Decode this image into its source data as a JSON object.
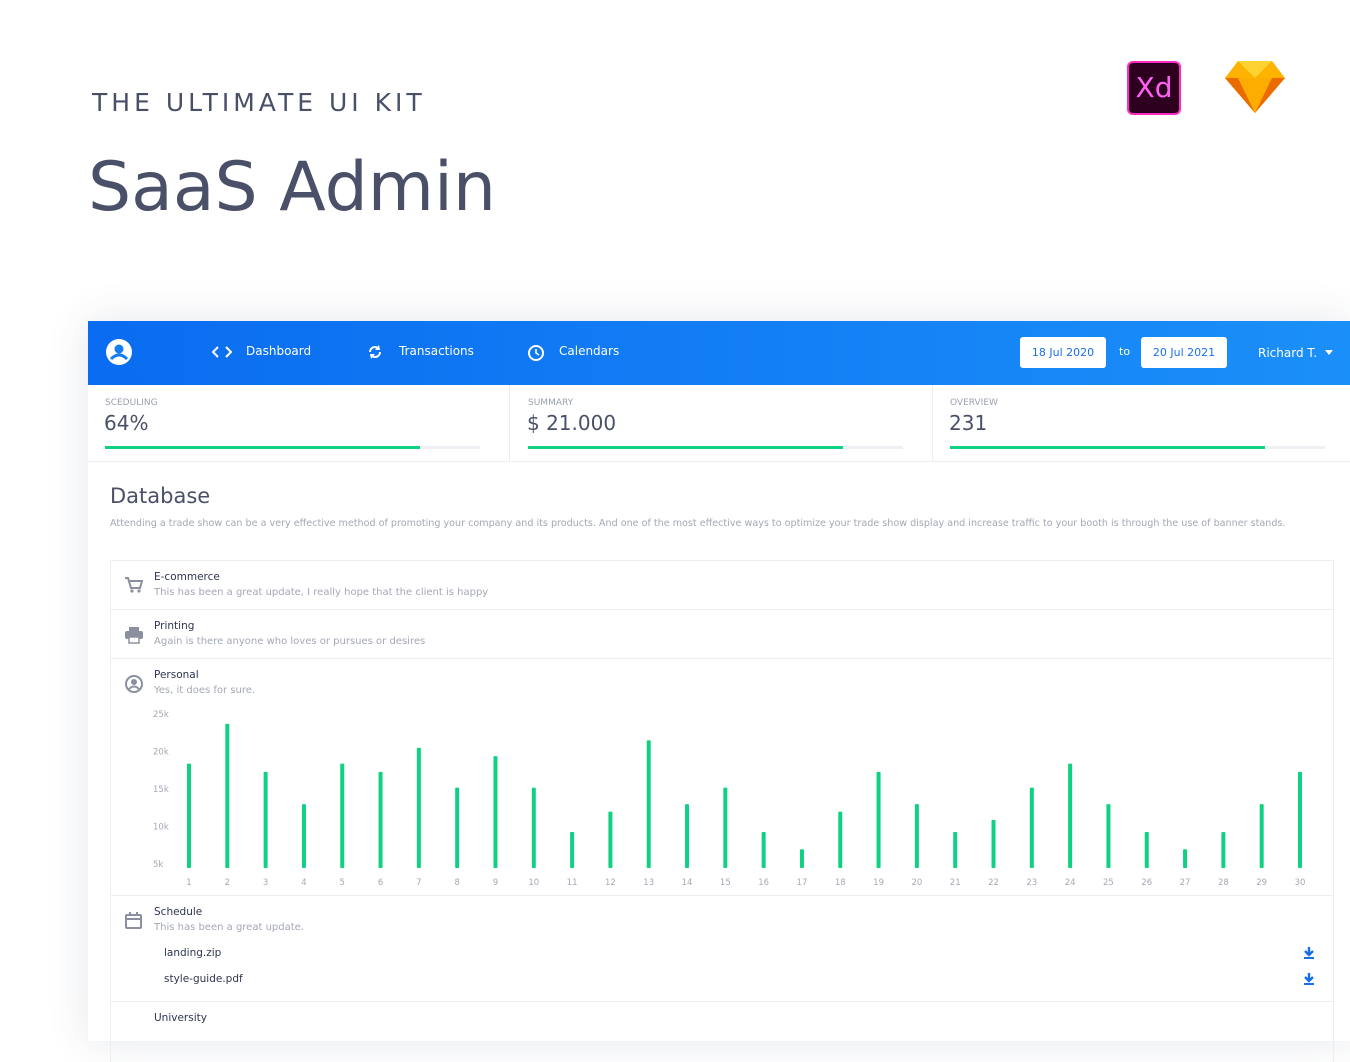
{
  "header": {
    "eyebrow": "THE ULTIMATE UI KIT",
    "title": "SaaS Admin",
    "xd_logo": "Xd"
  },
  "nav": {
    "items": [
      "Dashboard",
      "Transactions",
      "Calendars"
    ],
    "date_from": "18 Jul 2020",
    "date_sep": "to",
    "date_to": "20 Jul 2021",
    "user": "Richard T."
  },
  "stats": [
    {
      "label": "SCEDULING",
      "value": "64%",
      "progress": 84
    },
    {
      "label": "SUMMARY",
      "value": "$ 21.000",
      "progress": 84
    },
    {
      "label": "OVERVIEW",
      "value": "231",
      "progress": 84
    }
  ],
  "database": {
    "title": "Database",
    "description": "Attending a trade show can be a very effective method of promoting your company and its products. And one of the most effective ways to optimize your trade show display and increase traffic to your booth is through the use of banner stands.",
    "items": [
      {
        "title": "E-commerce",
        "text": "This has been a great update, I really hope that the client is happy"
      },
      {
        "title": "Printing",
        "text": "Again is there anyone who loves or pursues or desires"
      },
      {
        "title": "Personal",
        "text": "Yes, it does for sure."
      },
      {
        "title": "Schedule",
        "text": "This has been a great update.",
        "files": [
          "landing.zip",
          "style-guide.pdf"
        ]
      },
      {
        "title": "University"
      }
    ]
  },
  "chart_data": {
    "type": "bar",
    "categories": [
      "1",
      "2",
      "3",
      "4",
      "5",
      "6",
      "7",
      "8",
      "9",
      "10",
      "11",
      "12",
      "13",
      "14",
      "15",
      "16",
      "17",
      "18",
      "19",
      "20",
      "21",
      "22",
      "23",
      "24",
      "25",
      "26",
      "27",
      "28",
      "29",
      "30"
    ],
    "values": [
      18400,
      23700,
      17300,
      13000,
      18400,
      17300,
      20500,
      15200,
      19400,
      15200,
      9300,
      12000,
      21500,
      13000,
      15200,
      9300,
      7000,
      12000,
      17300,
      13000,
      9300,
      10900,
      15200,
      18400,
      13000,
      9300,
      7000,
      9300,
      13000,
      17300
    ],
    "color": "#0fd183",
    "ylim": [
      4500,
      25000
    ],
    "yticks": [
      {
        "value": 5000,
        "label": "5k"
      },
      {
        "value": 10000,
        "label": "10k"
      },
      {
        "value": 15000,
        "label": "15k"
      },
      {
        "value": 20000,
        "label": "20k"
      },
      {
        "value": 25000,
        "label": "25k"
      }
    ]
  }
}
